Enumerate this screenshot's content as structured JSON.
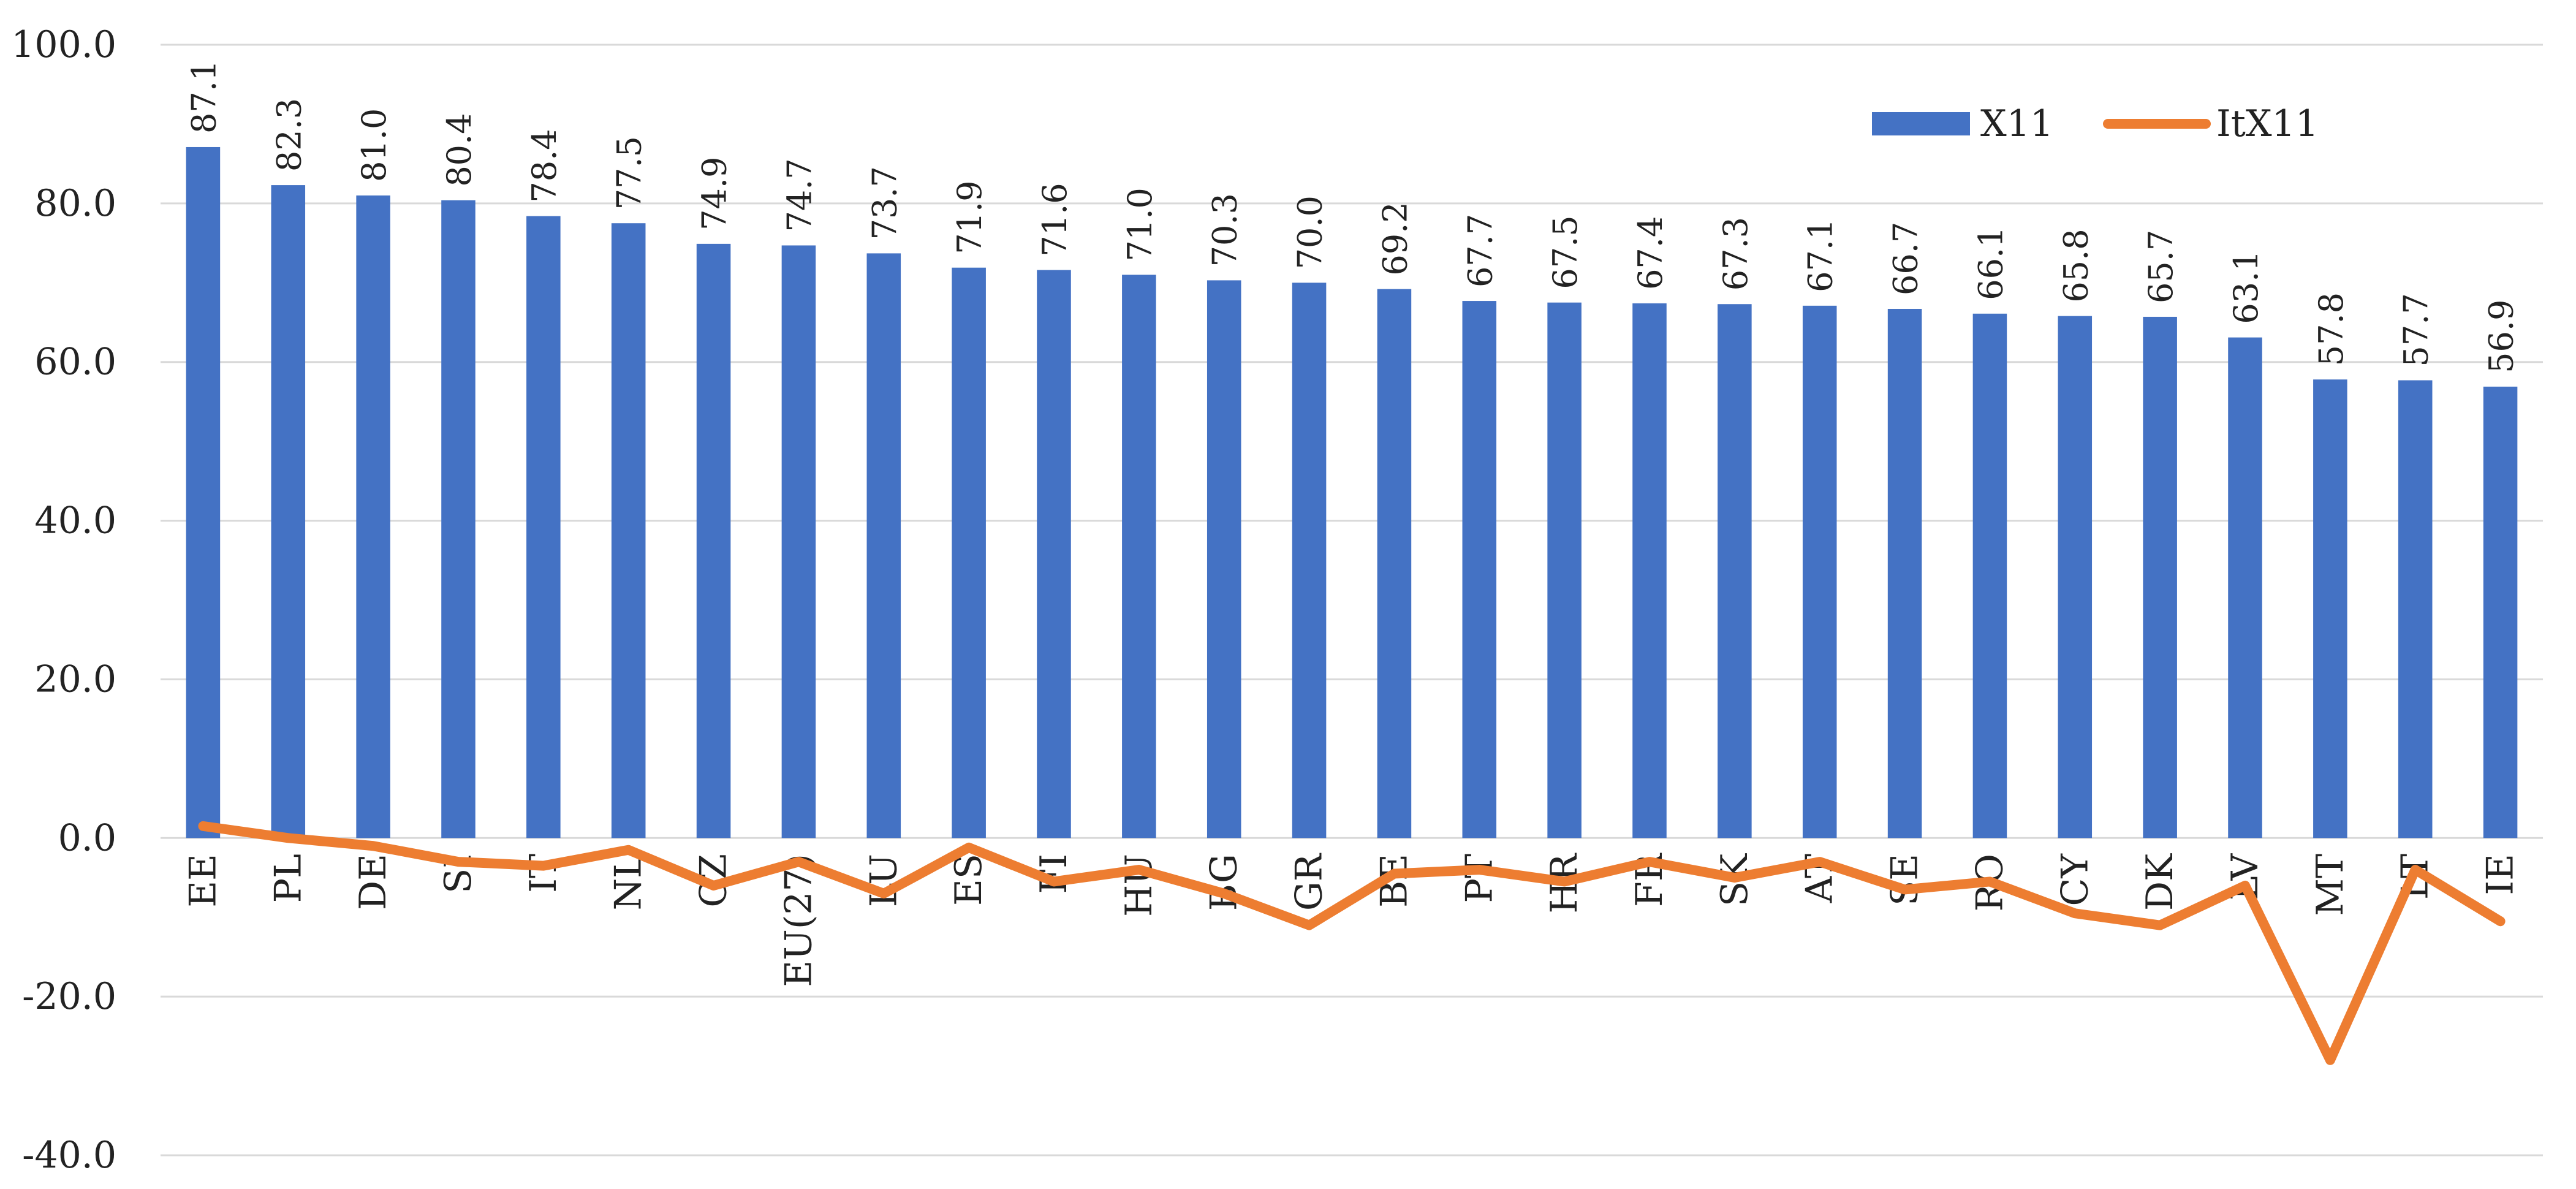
{
  "chart_data": {
    "type": "bar",
    "title": "",
    "xlabel": "",
    "ylabel": "",
    "ylim": [
      -40,
      100
    ],
    "yticks": [
      -40,
      -20,
      0,
      20,
      40,
      60,
      80,
      100
    ],
    "ytick_labels": [
      "-40.0",
      "-20.0",
      "0.0",
      "20.0",
      "40.0",
      "60.0",
      "80.0",
      "100.0"
    ],
    "grid": true,
    "legend": "top-right",
    "categories": [
      "EE",
      "PL",
      "DE",
      "SI",
      "IT",
      "NL",
      "CZ",
      "EU(27)",
      "LU",
      "ES",
      "FI",
      "HU",
      "BG",
      "GR",
      "BE",
      "PT",
      "HR",
      "FR",
      "SK",
      "AT",
      "SE",
      "RO",
      "CY",
      "DK",
      "LV",
      "MT",
      "LT",
      "IE"
    ],
    "series": [
      {
        "name": "X11",
        "type": "bar",
        "color": "#4472C4",
        "values": [
          87.1,
          82.3,
          81.0,
          80.4,
          78.4,
          77.5,
          74.9,
          74.7,
          73.7,
          71.9,
          71.6,
          71.0,
          70.3,
          70.0,
          69.2,
          67.7,
          67.5,
          67.4,
          67.3,
          67.1,
          66.7,
          66.1,
          65.8,
          65.7,
          63.1,
          57.8,
          57.7,
          56.9
        ],
        "labels": [
          "87.1",
          "82.3",
          "81.0",
          "80.4",
          "78.4",
          "77.5",
          "74.9",
          "74.7",
          "73.7",
          "71.9",
          "71.6",
          "71.0",
          "70.3",
          "70.0",
          "69.2",
          "67.7",
          "67.5",
          "67.4",
          "67.3",
          "67.1",
          "66.7",
          "66.1",
          "65.8",
          "65.7",
          "63.1",
          "57.8",
          "57.7",
          "56.9"
        ]
      },
      {
        "name": "ItX11",
        "type": "line",
        "color": "#ED7D31",
        "values": [
          1.5,
          0.0,
          -1.0,
          -3.0,
          -3.5,
          -1.5,
          -6.0,
          -3.0,
          -7.0,
          -1.2,
          -5.5,
          -4.0,
          -7.0,
          -11.0,
          -4.5,
          -4.0,
          -5.5,
          -3.0,
          -5.0,
          -3.0,
          -6.5,
          -5.5,
          -9.5,
          -11.0,
          -6.0,
          -28.0,
          -4.0,
          -10.5
        ]
      }
    ]
  }
}
